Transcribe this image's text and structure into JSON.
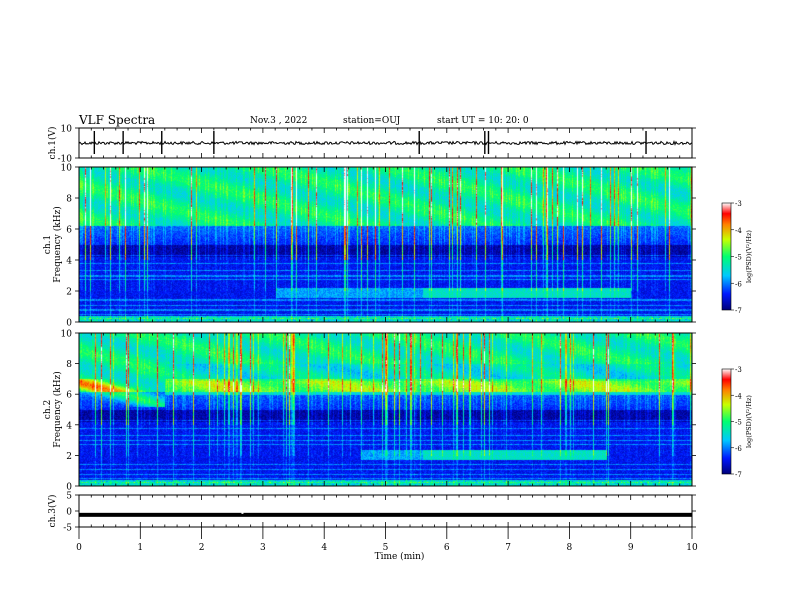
{
  "header": {
    "title": "VLF Spectra",
    "date": "Nov.3 , 2022",
    "station": "station=OUJ",
    "start": "start UT = 10: 20: 0"
  },
  "chart_data": [
    {
      "type": "line",
      "name": "ch1-waveform",
      "ylabel": "ch.1(V)",
      "ylim": [
        -10,
        10
      ],
      "yticks": [
        "10",
        "-10"
      ],
      "xlim": [
        0,
        10
      ],
      "baseline": 0,
      "spikes_min": [
        0.25,
        0.72,
        1.35,
        2.2,
        5.55,
        6.62,
        6.68,
        9.25
      ]
    },
    {
      "type": "heatmap",
      "name": "ch1-spectrogram",
      "ylabel": "ch.1 Frequency (kHz)",
      "ylim": [
        0,
        10
      ],
      "yticks": [
        "0",
        "2",
        "4",
        "6",
        "8",
        "10"
      ],
      "xlim": [
        0,
        10
      ],
      "colorbar": {
        "label": "log(PSD)(V²/Hz)",
        "range": [
          -7,
          -3
        ],
        "ticks": [
          "-3",
          "-4",
          "-5",
          "-6",
          "-7"
        ]
      },
      "hiss_band_khz": [
        1.6,
        2.2
      ],
      "hiss_band_min": [
        3.2,
        9.0
      ]
    },
    {
      "type": "heatmap",
      "name": "ch2-spectrogram",
      "ylabel": "ch.2 Frequency (kHz)",
      "ylim": [
        0,
        10
      ],
      "yticks": [
        "0",
        "2",
        "4",
        "6",
        "8",
        "10"
      ],
      "xlim": [
        0,
        10
      ],
      "colorbar": {
        "label": "log(PSD)(V²/Hz)",
        "range": [
          -7,
          -3
        ],
        "ticks": [
          "-3",
          "-4",
          "-5",
          "-6",
          "-7"
        ]
      },
      "hiss_band_khz": [
        1.7,
        2.4
      ],
      "hiss_band_min": [
        4.6,
        8.6
      ]
    },
    {
      "type": "line",
      "name": "ch3-waveform",
      "ylabel": "ch.3(V)",
      "ylim": [
        -5,
        5
      ],
      "yticks": [
        "5",
        "0",
        "-5"
      ],
      "xlim": [
        0,
        10
      ],
      "baseline": -1.2
    }
  ],
  "x_axis": {
    "label": "Time (min)",
    "ticks": [
      "0",
      "1",
      "2",
      "3",
      "4",
      "5",
      "6",
      "7",
      "8",
      "9",
      "10"
    ]
  },
  "colors": {
    "axis": "#000000",
    "background": "#ffffff"
  }
}
